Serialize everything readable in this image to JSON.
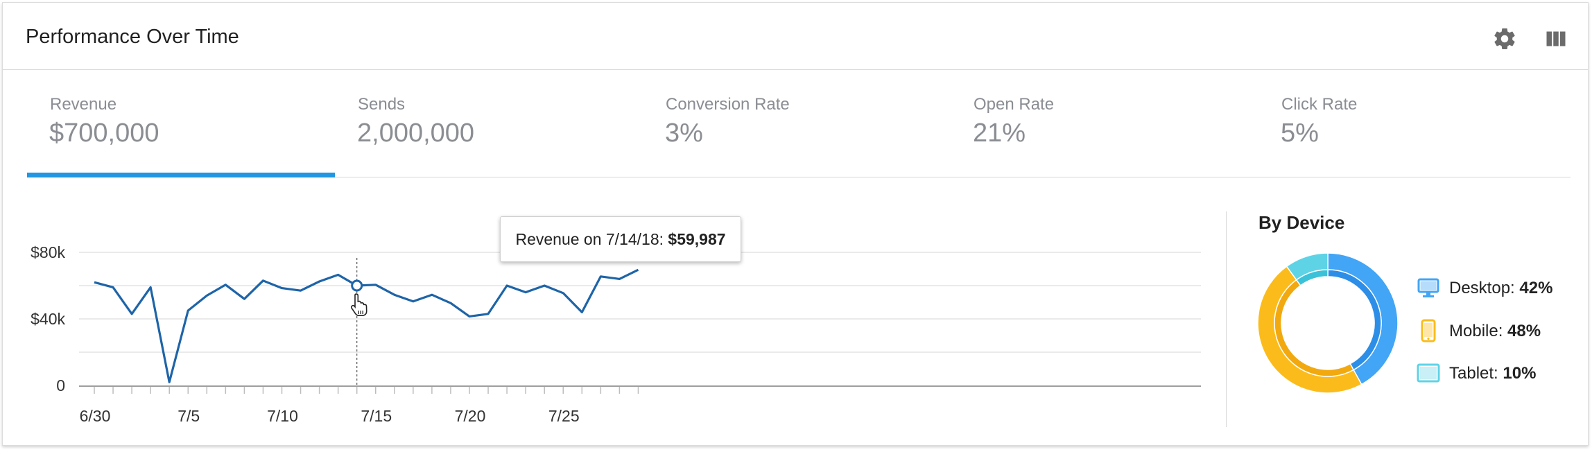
{
  "header": {
    "title": "Performance Over Time",
    "settings_icon": "gear-icon",
    "columns_icon": "columns-icon"
  },
  "tabs": [
    {
      "label": "Revenue",
      "value": "$700,000",
      "active": true
    },
    {
      "label": "Sends",
      "value": "2,000,000",
      "active": false
    },
    {
      "label": "Conversion Rate",
      "value": "3%",
      "active": false
    },
    {
      "label": "Open Rate",
      "value": "21%",
      "active": false
    },
    {
      "label": "Click Rate",
      "value": "5%",
      "active": false
    }
  ],
  "tooltip": {
    "prefix": "Revenue on 7/14/18: ",
    "value": "$59,987"
  },
  "device": {
    "title": "By Device",
    "items": [
      {
        "label": "Desktop: ",
        "value": "42%",
        "icon": "desktop-icon",
        "color": "#42a5f5"
      },
      {
        "label": "Mobile: ",
        "value": "48%",
        "icon": "mobile-icon",
        "color": "#fbbc1b"
      },
      {
        "label": "Tablet: ",
        "value": "10%",
        "icon": "tablet-icon",
        "color": "#5ed3e6"
      }
    ]
  },
  "colors": {
    "accent": "#2196e3",
    "line": "#1e64a8"
  },
  "chart_data": [
    {
      "type": "line",
      "title": "",
      "xlabel": "",
      "ylabel": "",
      "x": [
        "6/30",
        "7/1",
        "7/2",
        "7/3",
        "7/4",
        "7/5",
        "7/6",
        "7/7",
        "7/8",
        "7/9",
        "7/10",
        "7/11",
        "7/12",
        "7/13",
        "7/14",
        "7/15",
        "7/16",
        "7/17",
        "7/18",
        "7/19",
        "7/20",
        "7/21",
        "7/22",
        "7/23",
        "7/24",
        "7/25",
        "7/26",
        "7/27",
        "7/28",
        "7/29"
      ],
      "series": [
        {
          "values": [
            62000,
            59000,
            43000,
            59000,
            2000,
            45000,
            54000,
            60500,
            52000,
            63000,
            58500,
            57000,
            62500,
            66500,
            59987,
            60500,
            54500,
            50500,
            54500,
            49500,
            41500,
            43000,
            60000,
            56000,
            60000,
            55500,
            44000,
            65500,
            64000,
            69500
          ]
        }
      ],
      "x_ticks": [
        "6/30",
        "7/5",
        "7/10",
        "7/15",
        "7/20",
        "7/25"
      ],
      "y_ticks": [
        "0",
        "$40k",
        "$80k"
      ],
      "ylim": [
        0,
        80000
      ],
      "grid": true,
      "highlight": {
        "x": "7/14",
        "value": 59987
      }
    },
    {
      "type": "pie",
      "title": "By Device",
      "categories": [
        "Desktop",
        "Mobile",
        "Tablet"
      ],
      "values": [
        42,
        48,
        10
      ]
    }
  ]
}
